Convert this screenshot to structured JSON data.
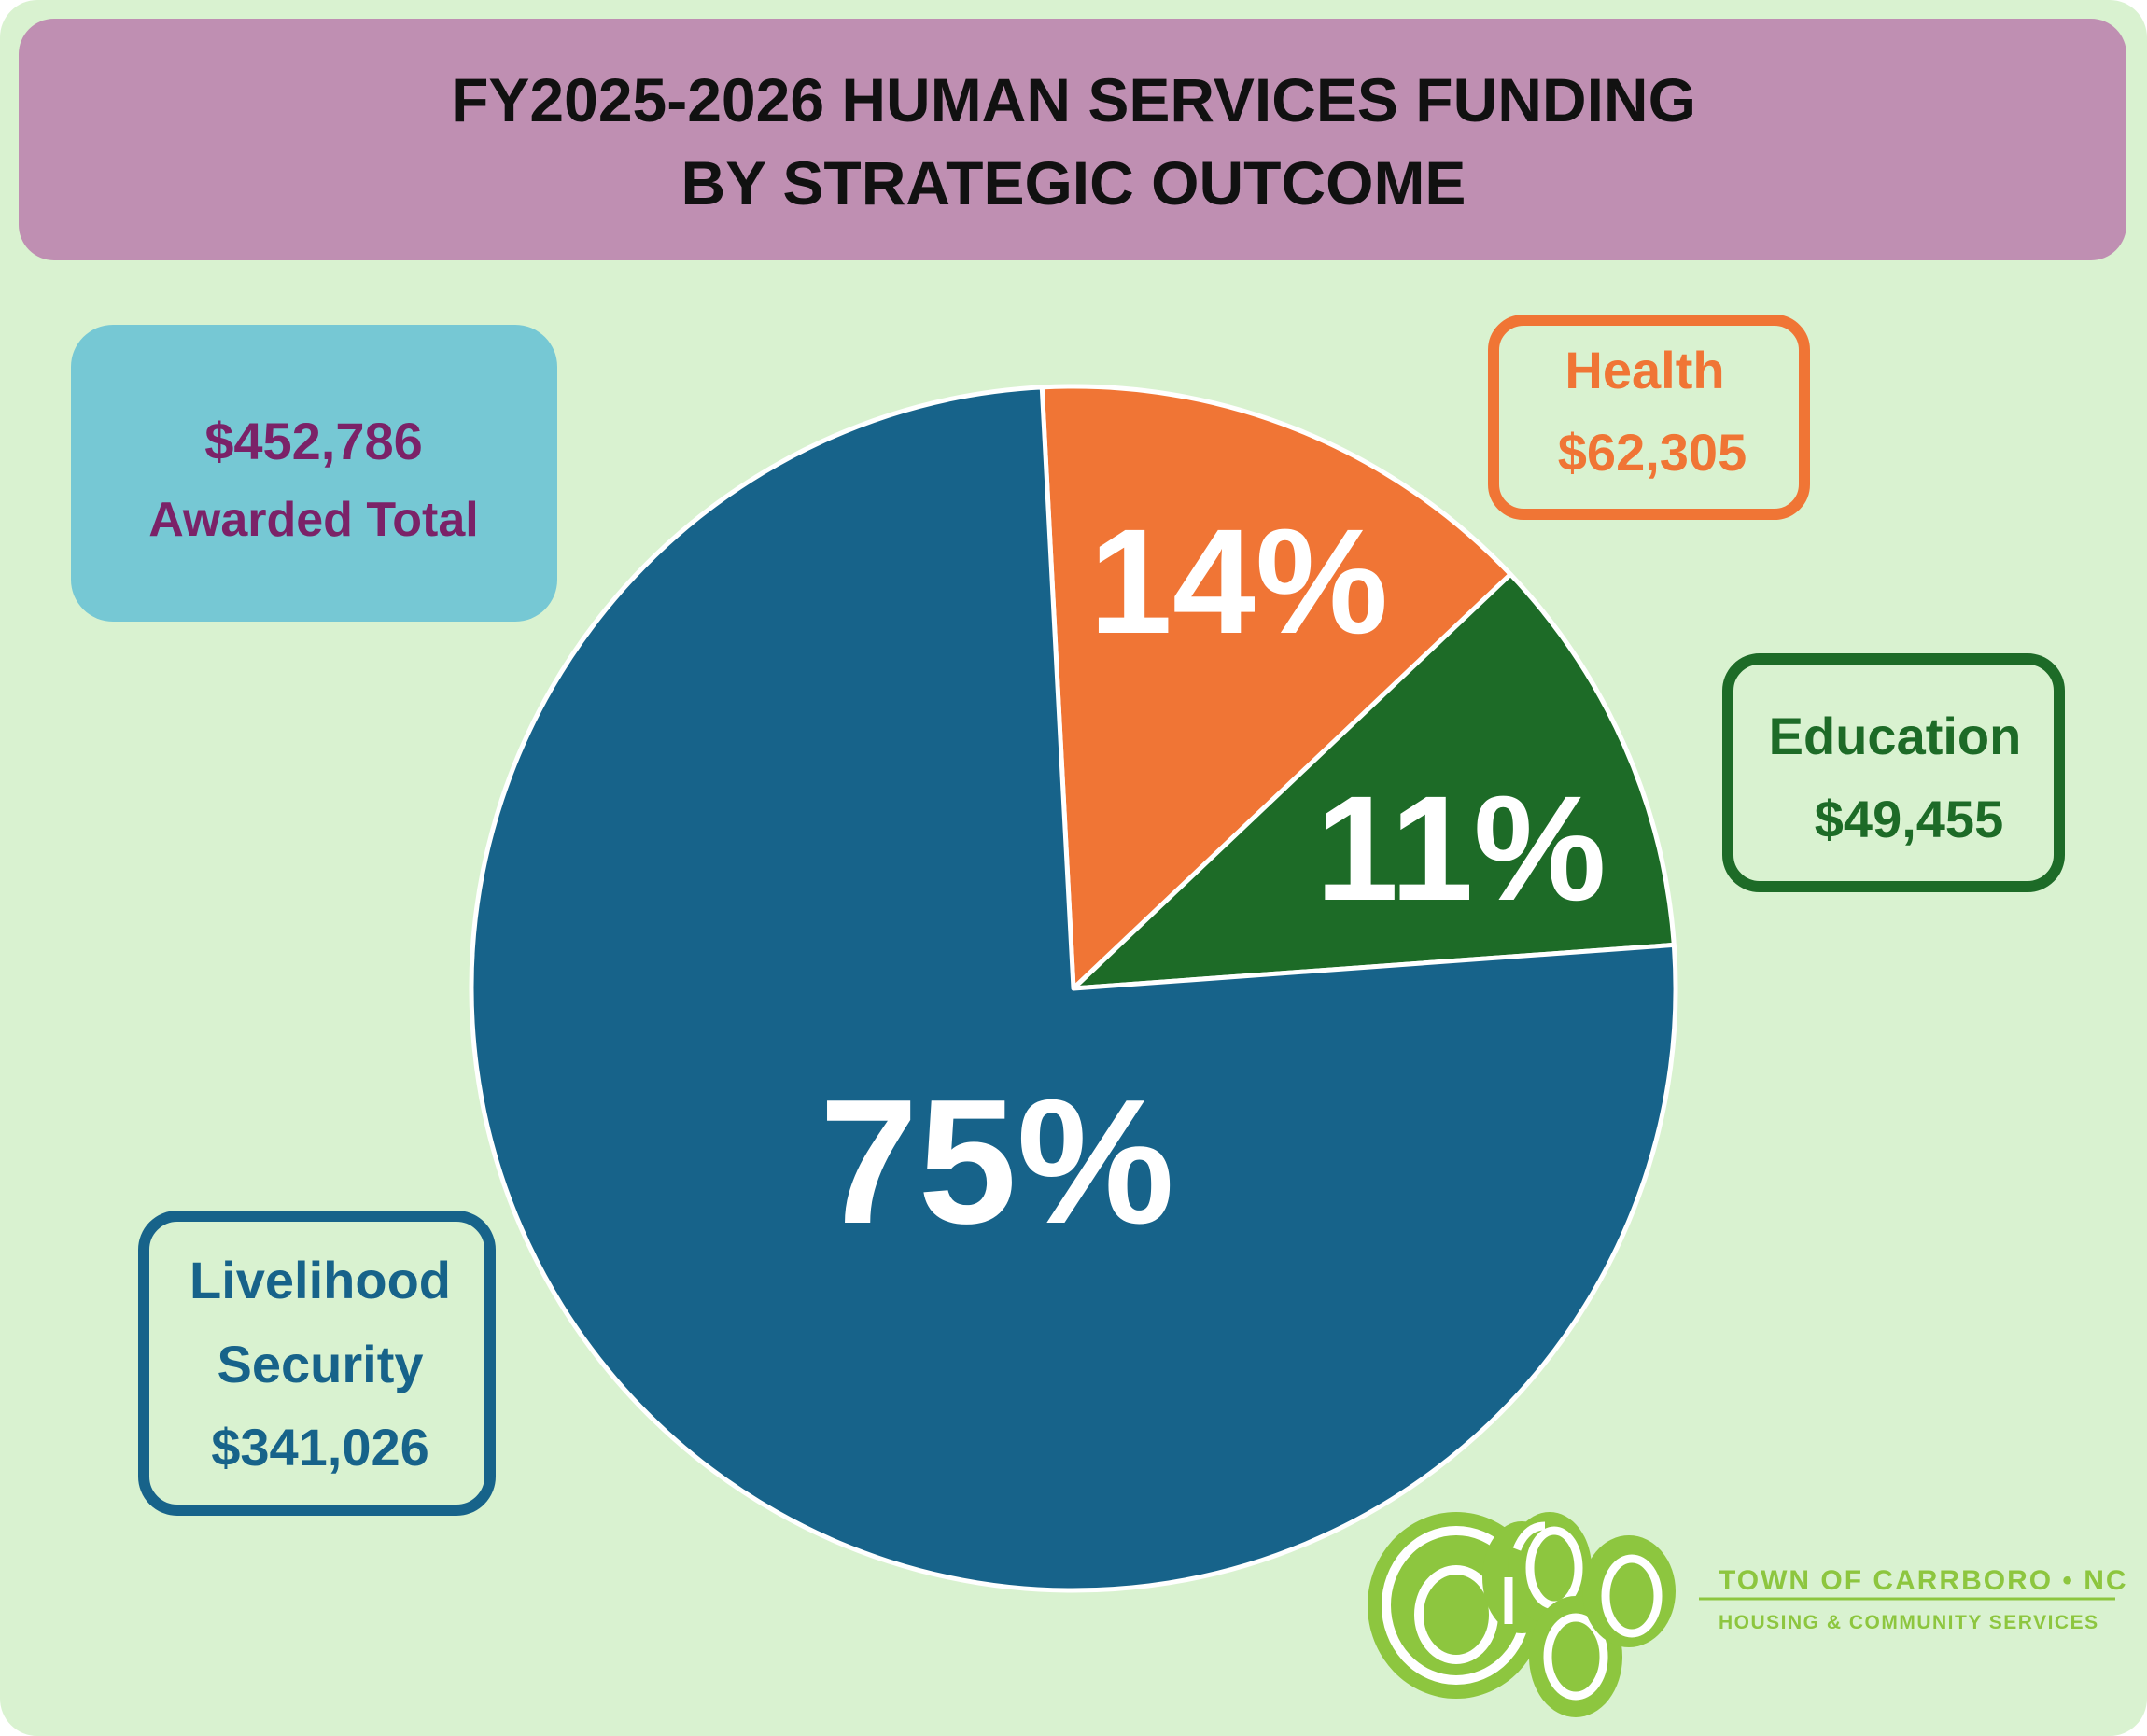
{
  "title": {
    "line1": "FY2025-2026 HUMAN SERVICES FUNDING",
    "line2": "BY STRATEGIC OUTCOME"
  },
  "total_box": {
    "amount": "$452,786",
    "label": "Awarded Total"
  },
  "colors": {
    "background": "#d9f2d0",
    "title_bar": "#bf8fb2",
    "total_box": "#76c8d4",
    "total_text": "#7b2268",
    "logo_green": "#8dc63f"
  },
  "chart_data": {
    "type": "pie",
    "title": "FY2025-2026 HUMAN SERVICES FUNDING BY STRATEGIC OUTCOME",
    "total": 452786,
    "slices": [
      {
        "name": "Livelihood Security",
        "name_line1": "Livelihood",
        "name_line2": "Security",
        "value": 341026,
        "amount_label": "$341,026",
        "percent_label": "75%",
        "color": "#17638a"
      },
      {
        "name": "Health",
        "value": 62305,
        "amount_label": "$62,305",
        "percent_label": "14%",
        "color": "#f07535"
      },
      {
        "name": "Education",
        "value": 49455,
        "amount_label": "$49,455",
        "percent_label": "11%",
        "color": "#1d6b27"
      }
    ],
    "start_angle_deg": -3,
    "order": "clockwise: Health, Education, Livelihood Security",
    "legend": "callout boxes"
  },
  "logo": {
    "wordmark": "carrboro",
    "line1": "TOWN OF CARRBORO • NC",
    "line2": "HOUSING & COMMUNITY SERVICES"
  }
}
